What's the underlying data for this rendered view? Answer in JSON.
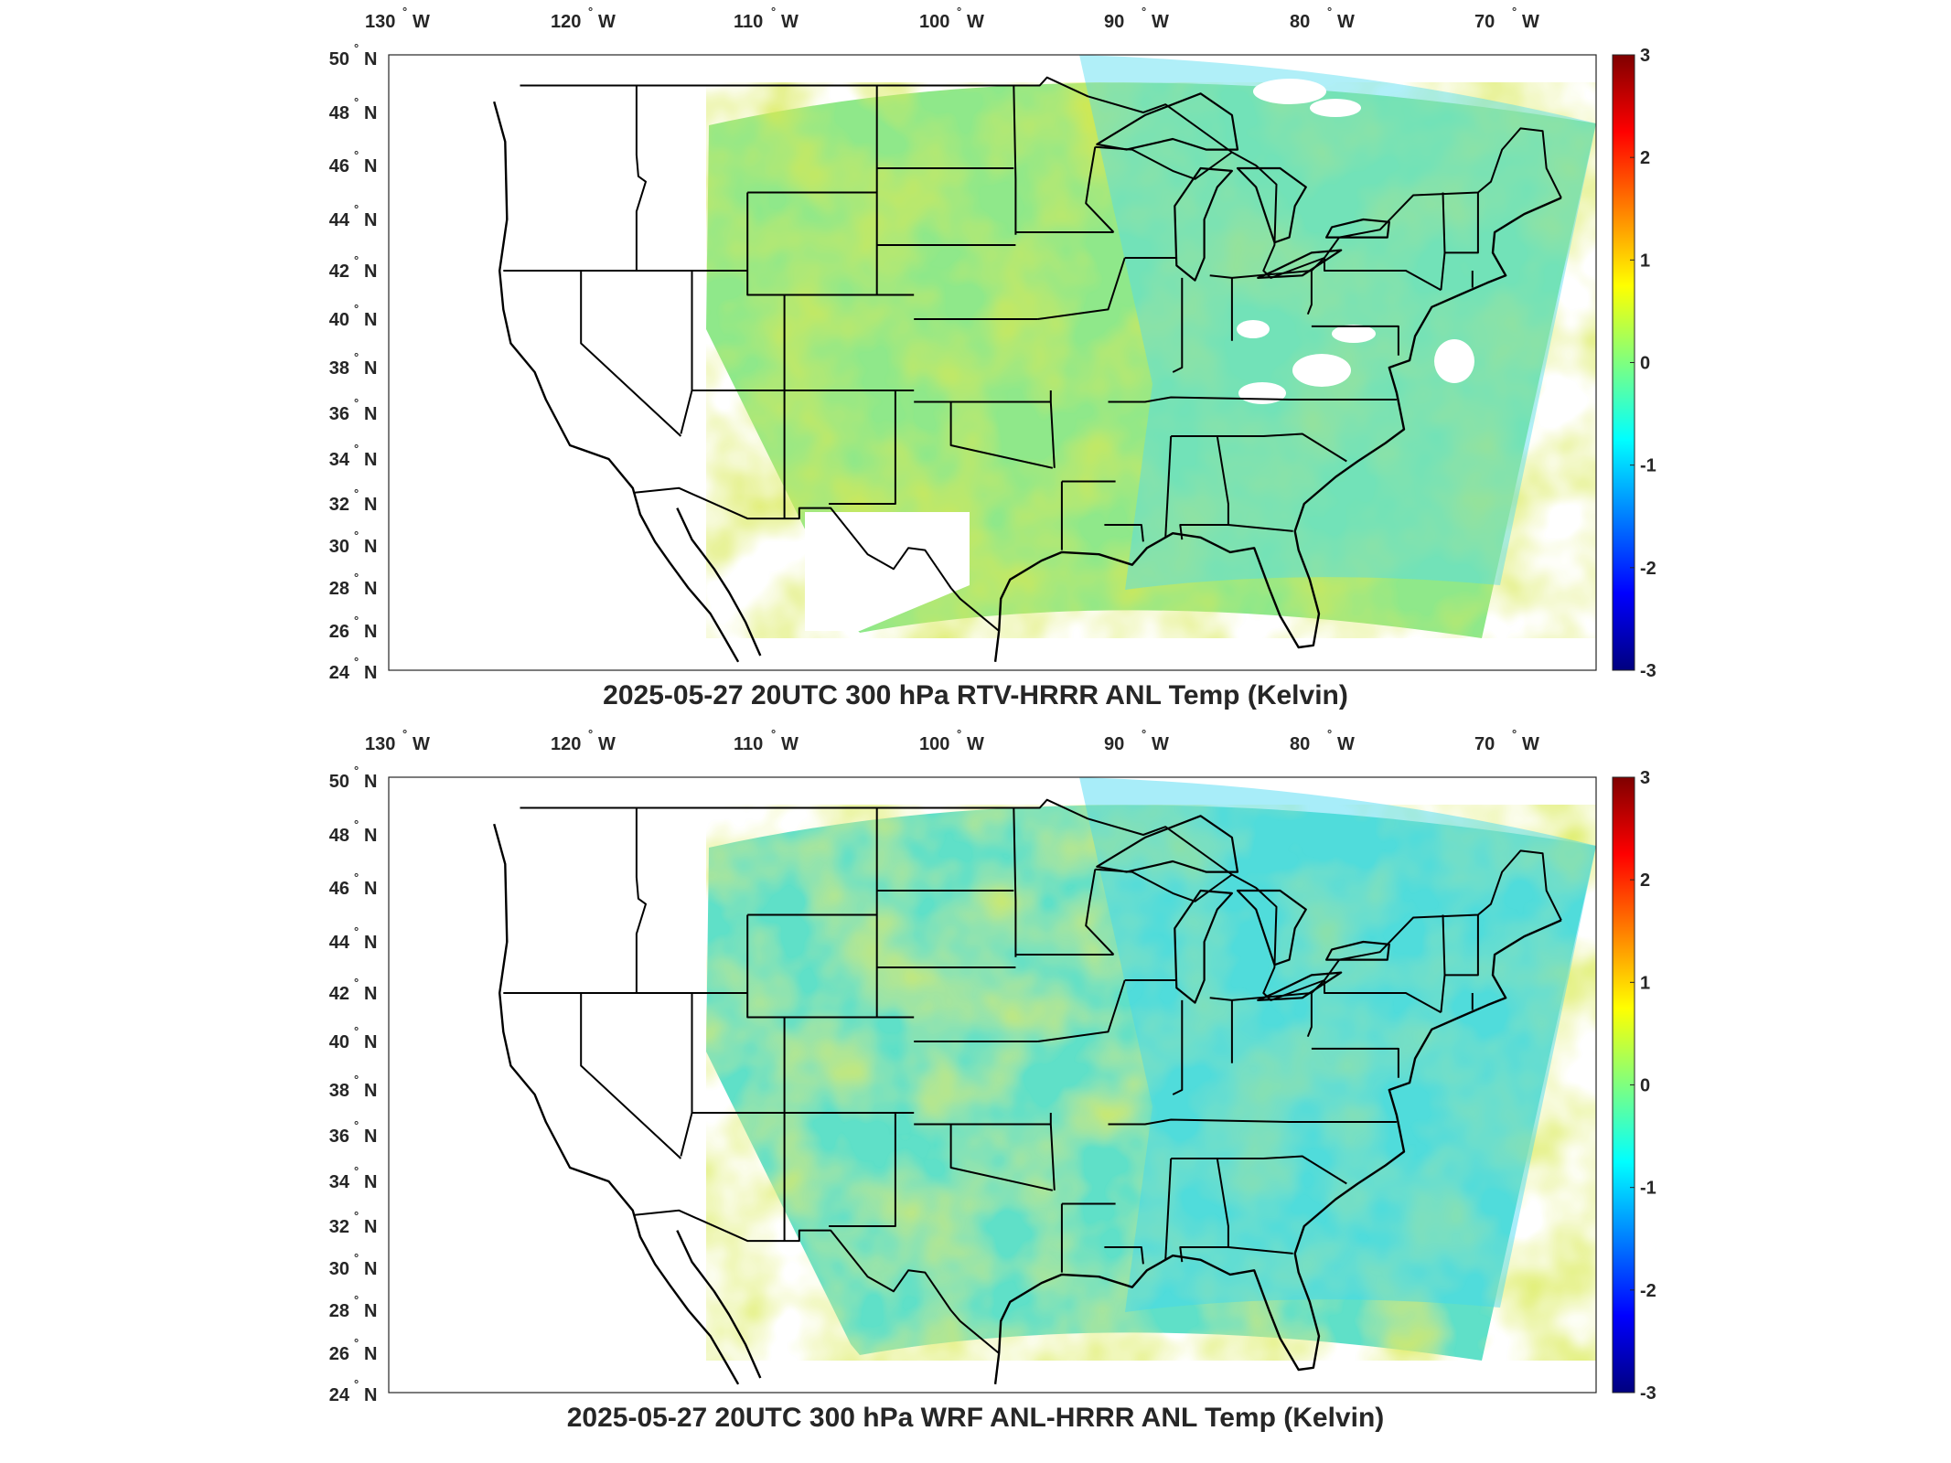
{
  "colorbar": {
    "min": -3,
    "max": 3,
    "ticks": [
      "3",
      "2",
      "1",
      "0",
      "-1",
      "-2",
      "-3"
    ],
    "colormap": [
      "#00007f",
      "#0000ff",
      "#007fff",
      "#00ffff",
      "#7fff7f",
      "#ffff00",
      "#ff7f00",
      "#ff0000",
      "#7f0000"
    ]
  },
  "lon_ticks": [
    "130",
    "120",
    "110",
    "100",
    "90",
    "80",
    "70"
  ],
  "lon_hemi": "W",
  "lat_ticks": [
    "50",
    "48",
    "46",
    "44",
    "42",
    "40",
    "38",
    "36",
    "34",
    "32",
    "30",
    "28",
    "26",
    "24"
  ],
  "lat_hemi": "N",
  "degree_symbol": "°",
  "panels": [
    {
      "title": "2025-05-27 20UTC 300 hPa RTV-HRRR ANL Temp (Kelvin)",
      "field_color": "#8fe88a",
      "warm_color": "#d6e84a",
      "cool_color": "#4fdcf0"
    },
    {
      "title": "2025-05-27 20UTC 300 hPa WRF ANL-HRRR ANL Temp (Kelvin)",
      "field_color": "#5fe0c8",
      "warm_color": "#d8ea4e",
      "cool_color": "#3fd8f2"
    }
  ]
}
